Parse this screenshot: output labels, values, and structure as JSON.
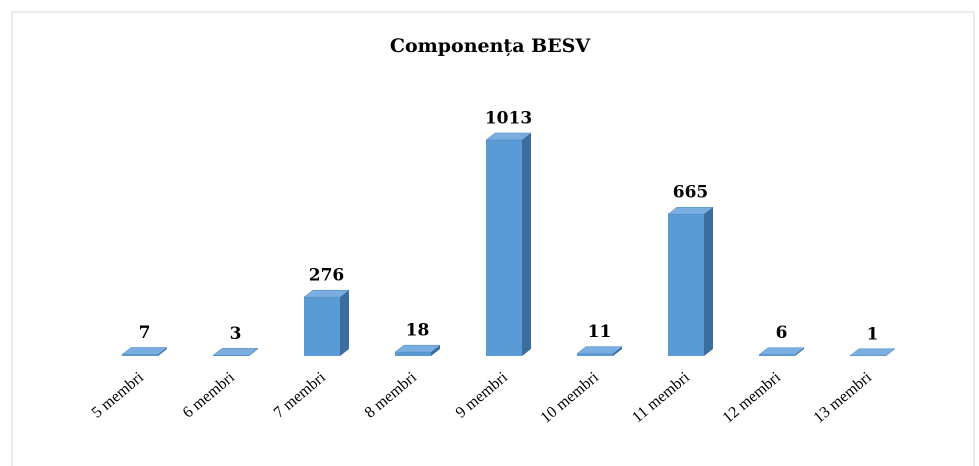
{
  "chart_data": {
    "type": "bar3d",
    "title": "Componența BESV",
    "categories": [
      "5 membri",
      "6 membri",
      "7 membri",
      "8 membri",
      "9 membri",
      "10 membri",
      "11 membri",
      "12 membri",
      "13 membri"
    ],
    "values": [
      7,
      3,
      276,
      18,
      1013,
      11,
      665,
      6,
      1
    ],
    "color": "#5b9bd5"
  }
}
